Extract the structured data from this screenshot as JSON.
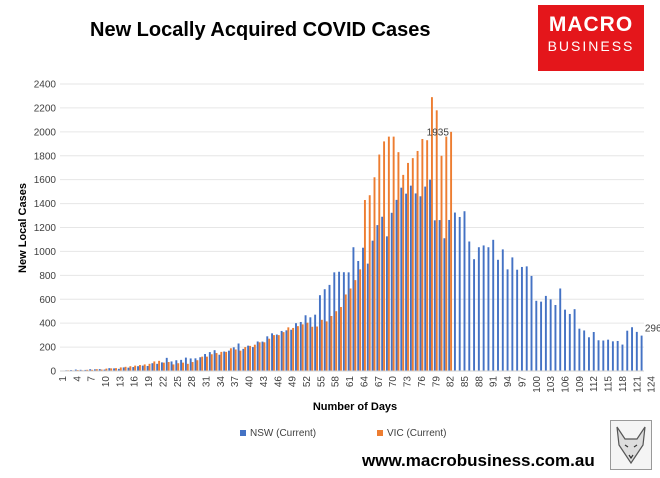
{
  "title": "New Locally Acquired COVID Cases",
  "logo": {
    "line1": "MACRO",
    "line2": "BUSINESS",
    "color": "#e4161b"
  },
  "footer_url": "www.macrobusiness.com.au",
  "fox_logo": "fox-icon",
  "chart_data": {
    "type": "bar",
    "title": "New Locally Acquired COVID Cases",
    "xlabel": "Number of Days",
    "ylabel": "New Local Cases",
    "ylim": [
      0,
      2400
    ],
    "ytick_step": 200,
    "xtick_labels": [
      "1",
      "4",
      "7",
      "10",
      "13",
      "16",
      "19",
      "22",
      "25",
      "28",
      "31",
      "34",
      "37",
      "40",
      "43",
      "46",
      "49",
      "52",
      "55",
      "58",
      "61",
      "64",
      "67",
      "70",
      "73",
      "76",
      "79",
      "82",
      "85",
      "88",
      "91",
      "94",
      "97",
      "100",
      "103",
      "106",
      "109",
      "112",
      "115",
      "118",
      "121",
      "124"
    ],
    "legend_position": "bottom",
    "annotations": [
      {
        "day": 79,
        "value": 1935,
        "text": "1935"
      },
      {
        "day": 124,
        "value": 296,
        "text": "296"
      }
    ],
    "series": [
      {
        "name": "NSW (Current)",
        "color": "#4472c4",
        "values": [
          3,
          6,
          8,
          12,
          10,
          9,
          15,
          14,
          16,
          12,
          24,
          22,
          18,
          30,
          28,
          33,
          40,
          45,
          42,
          65,
          60,
          72,
          110,
          80,
          90,
          93,
          112,
          105,
          106,
          115,
          142,
          158,
          174,
          136,
          163,
          170,
          198,
          230,
          185,
          212,
          200,
          247,
          246,
          290,
          315,
          305,
          335,
          340,
          345,
          400,
          410,
          466,
          449,
          471,
          634,
          684,
          720,
          825,
          830,
          826,
          825,
          1035,
          920,
          1031,
          898,
          1090,
          1220,
          1290,
          1126,
          1323,
          1431,
          1533,
          1483,
          1550,
          1485,
          1461,
          1542,
          1600,
          1260,
          1262,
          1110,
          1263,
          1325,
          1288,
          1336,
          1083,
          935,
          1035,
          1050,
          1035,
          1097,
          930,
          1017,
          850,
          950,
          847,
          870,
          875,
          795,
          587,
          580,
          628,
          599,
          552,
          690,
          513,
          477,
          517,
          354,
          339,
          282,
          326,
          257,
          255,
          262,
          248,
          251,
          221,
          337,
          366,
          327,
          296
        ]
      },
      {
        "name": "VIC (Current)",
        "color": "#ed7d31",
        "values": [
          2,
          6,
          5,
          8,
          6,
          10,
          10,
          15,
          12,
          20,
          22,
          24,
          30,
          35,
          40,
          45,
          50,
          55,
          60,
          80,
          85,
          70,
          75,
          55,
          65,
          70,
          60,
          75,
          90,
          120,
          120,
          140,
          150,
          160,
          160,
          190,
          180,
          170,
          200,
          210,
          220,
          240,
          240,
          270,
          300,
          300,
          325,
          365,
          360,
          375,
          390,
          404,
          370,
          372,
          428,
          415,
          460,
          500,
          535,
          640,
          690,
          760,
          850,
          1430,
          1470,
          1620,
          1810,
          1920,
          1960,
          1960,
          1830,
          1640,
          1740,
          1780,
          1840,
          1940,
          1930,
          2290,
          2180,
          1800,
          1960,
          2000
        ]
      }
    ]
  }
}
